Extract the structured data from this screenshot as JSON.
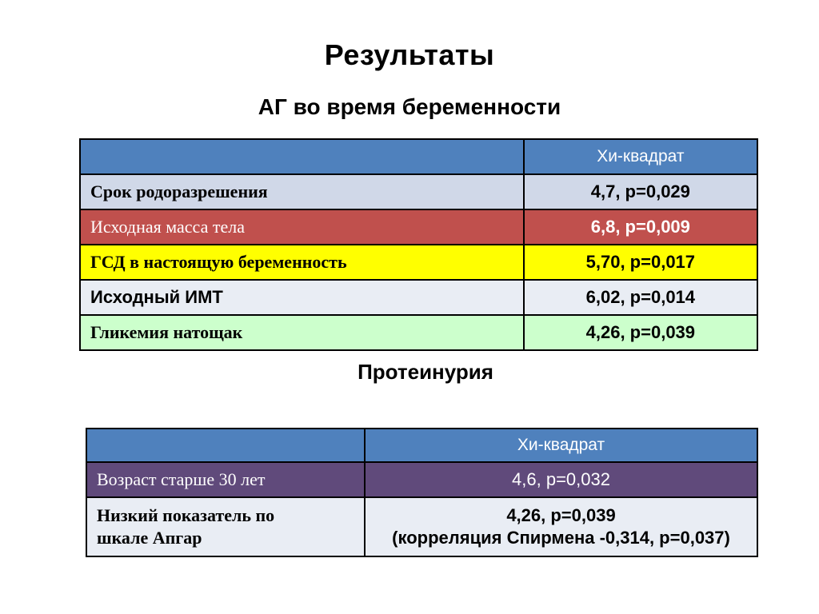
{
  "slide": {
    "title": "Результаты",
    "subtitle": "АГ во время беременности",
    "section2_title": "Протеинурия"
  },
  "table1": {
    "header": [
      "",
      "Хи-квадрат"
    ],
    "rows": [
      {
        "label": "Срок родоразрешения",
        "value": "4,7, p=0,029"
      },
      {
        "label": "Исходная масса тела",
        "value": "6,8, p=0,009"
      },
      {
        "label": "ГСД в настоящую беременность",
        "value": "5,70, p=0,017"
      },
      {
        "label": "Исходный ИМТ",
        "value": "6,02, p=0,014"
      },
      {
        "label": "Гликемия натощак",
        "value": "4,26, p=0,039"
      }
    ]
  },
  "table2": {
    "header": [
      "",
      "Хи-квадрат"
    ],
    "rows": [
      {
        "label": "Возраст старше 30 лет",
        "value": "4,6, p=0,032"
      },
      {
        "label_line1": "Низкий показатель по",
        "label_line2": "шкале Апгар",
        "value_line1": "4,26, p=0,039",
        "value_line2": "(корреляция Спирмена -0,314, p=0,037)"
      }
    ]
  },
  "colors": {
    "header_blue": "#4f81bd",
    "row_gray": "#d0d8e8",
    "row_red": "#c0504d",
    "row_yellow": "#ffff00",
    "row_light": "#e9edf4",
    "row_green": "#ccffcc",
    "row_purple": "#604a7b"
  }
}
